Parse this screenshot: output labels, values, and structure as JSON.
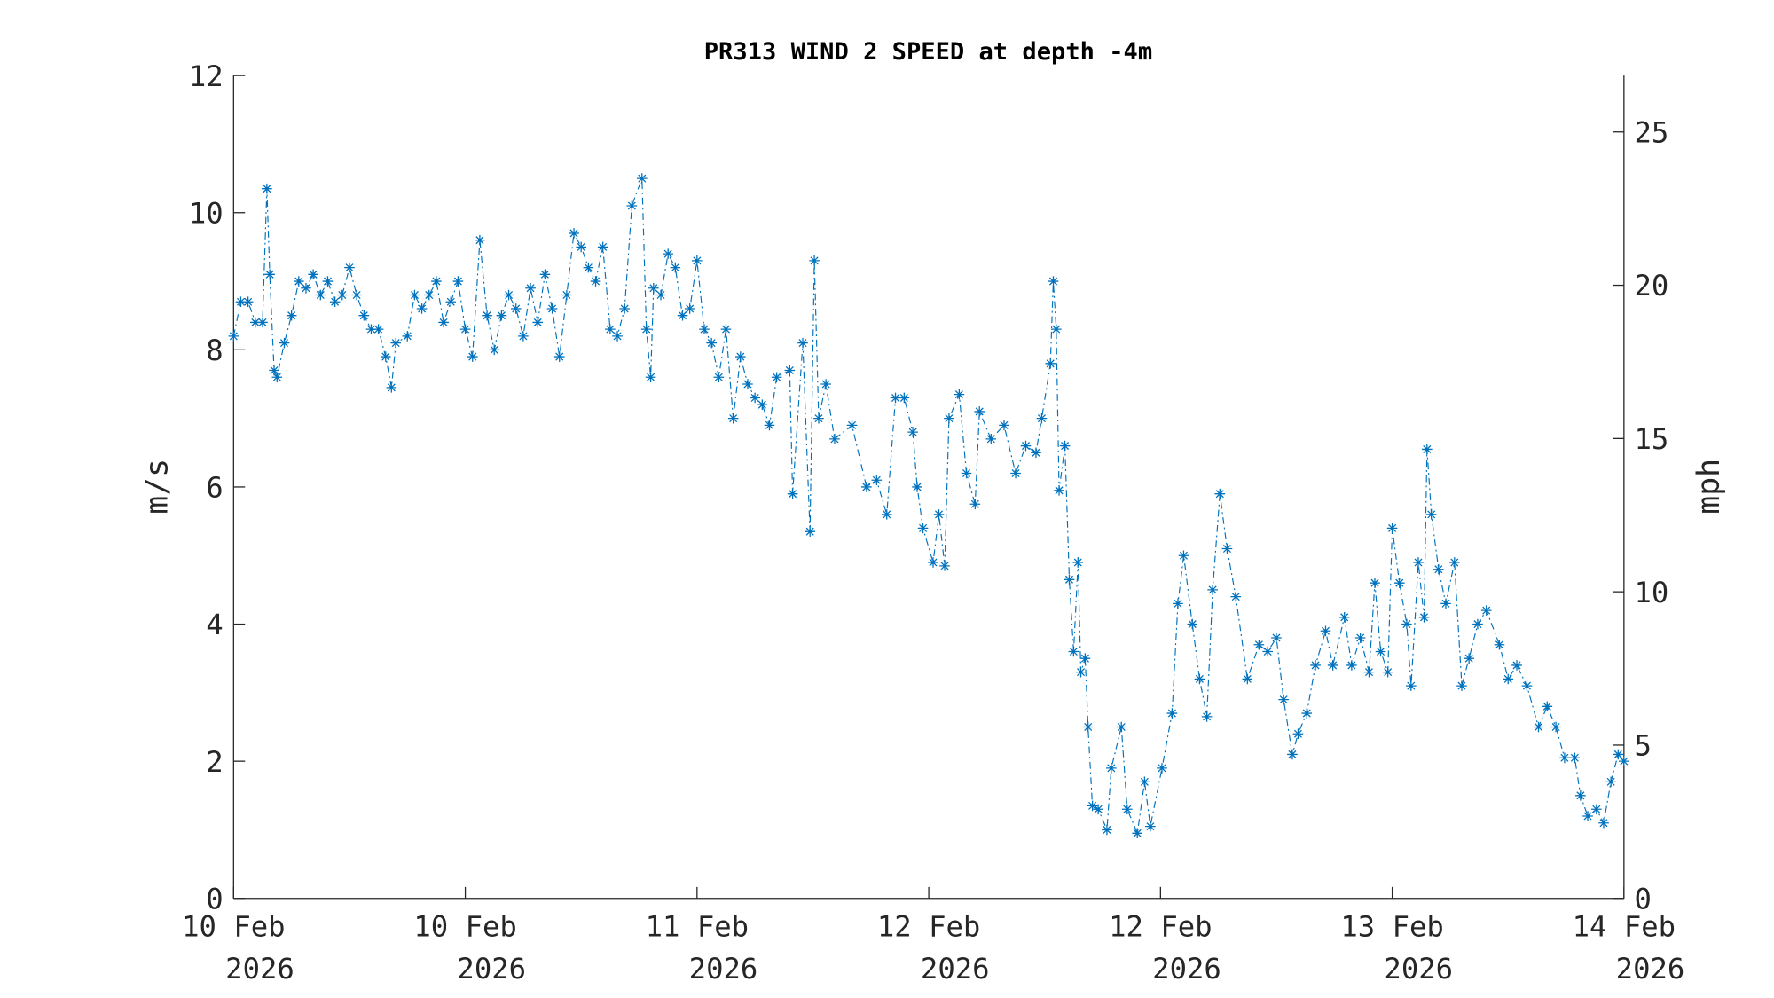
{
  "chart_data": {
    "type": "line",
    "title": "PR313 WIND 2 SPEED at depth -4m",
    "ylabel": "m/s",
    "ylabel_right": "mph",
    "xlabel": "",
    "xlim_hours": [
      0,
      96
    ],
    "ylim": [
      0,
      12
    ],
    "ylim_right": [
      0,
      26.84
    ],
    "yticks": [
      0,
      2,
      4,
      6,
      8,
      10,
      12
    ],
    "yticks_right": [
      0,
      5,
      10,
      15,
      20,
      25
    ],
    "xticks": [
      {
        "hour": 0,
        "line1": "10 Feb",
        "line2": "2026"
      },
      {
        "hour": 16,
        "line1": "10 Feb",
        "line2": "2026"
      },
      {
        "hour": 32,
        "line1": "11 Feb",
        "line2": "2026"
      },
      {
        "hour": 48,
        "line1": "12 Feb",
        "line2": "2026"
      },
      {
        "hour": 64,
        "line1": "12 Feb",
        "line2": "2026"
      },
      {
        "hour": 80,
        "line1": "13 Feb",
        "line2": "2026"
      },
      {
        "hour": 96,
        "line1": "14 Feb",
        "line2": "2026"
      }
    ],
    "grid": false,
    "series": [
      {
        "name": "wind speed",
        "color": "#0072BD",
        "marker": "asterisk",
        "linestyle": "dash-dot",
        "points": [
          [
            0,
            8.2
          ],
          [
            0.5,
            8.7
          ],
          [
            1,
            8.7
          ],
          [
            1.5,
            8.4
          ],
          [
            2,
            8.4
          ],
          [
            2.3,
            10.35
          ],
          [
            2.5,
            9.1
          ],
          [
            2.8,
            7.7
          ],
          [
            3,
            7.6
          ],
          [
            3.5,
            8.1
          ],
          [
            4,
            8.5
          ],
          [
            4.5,
            9.0
          ],
          [
            5,
            8.9
          ],
          [
            5.5,
            9.1
          ],
          [
            6,
            8.8
          ],
          [
            6.5,
            9.0
          ],
          [
            7,
            8.7
          ],
          [
            7.5,
            8.8
          ],
          [
            8,
            9.2
          ],
          [
            8.5,
            8.8
          ],
          [
            9,
            8.5
          ],
          [
            9.5,
            8.3
          ],
          [
            10,
            8.3
          ],
          [
            10.5,
            7.9
          ],
          [
            10.9,
            7.45
          ],
          [
            11.2,
            8.1
          ],
          [
            12,
            8.2
          ],
          [
            12.5,
            8.8
          ],
          [
            13,
            8.6
          ],
          [
            13.5,
            8.8
          ],
          [
            14,
            9.0
          ],
          [
            14.5,
            8.4
          ],
          [
            15,
            8.7
          ],
          [
            15.5,
            9.0
          ],
          [
            16,
            8.3
          ],
          [
            16.5,
            7.9
          ],
          [
            17,
            9.6
          ],
          [
            17.5,
            8.5
          ],
          [
            18,
            8.0
          ],
          [
            18.5,
            8.5
          ],
          [
            19,
            8.8
          ],
          [
            19.5,
            8.6
          ],
          [
            20,
            8.2
          ],
          [
            20.5,
            8.9
          ],
          [
            21,
            8.4
          ],
          [
            21.5,
            9.1
          ],
          [
            22,
            8.6
          ],
          [
            22.5,
            7.9
          ],
          [
            23,
            8.8
          ],
          [
            23.5,
            9.7
          ],
          [
            24,
            9.5
          ],
          [
            24.5,
            9.2
          ],
          [
            25,
            9.0
          ],
          [
            25.5,
            9.5
          ],
          [
            26,
            8.3
          ],
          [
            26.5,
            8.2
          ],
          [
            27,
            8.6
          ],
          [
            27.5,
            10.1
          ],
          [
            28.2,
            10.5
          ],
          [
            28.5,
            8.3
          ],
          [
            28.8,
            7.6
          ],
          [
            29,
            8.9
          ],
          [
            29.5,
            8.8
          ],
          [
            30,
            9.4
          ],
          [
            30.5,
            9.2
          ],
          [
            31,
            8.5
          ],
          [
            31.5,
            8.6
          ],
          [
            32,
            9.3
          ],
          [
            32.5,
            8.3
          ],
          [
            33,
            8.1
          ],
          [
            33.5,
            7.6
          ],
          [
            34,
            8.3
          ],
          [
            34.5,
            7.0
          ],
          [
            35,
            7.9
          ],
          [
            35.5,
            7.5
          ],
          [
            36,
            7.3
          ],
          [
            36.5,
            7.2
          ],
          [
            37,
            6.9
          ],
          [
            37.5,
            7.6
          ],
          [
            38.4,
            7.7
          ],
          [
            38.6,
            5.9
          ],
          [
            39.3,
            8.1
          ],
          [
            39.8,
            5.35
          ],
          [
            40.1,
            9.3
          ],
          [
            40.4,
            7.0
          ],
          [
            40.9,
            7.5
          ],
          [
            41.5,
            6.7
          ],
          [
            42.7,
            6.9
          ],
          [
            43.7,
            6.0
          ],
          [
            44.4,
            6.1
          ],
          [
            45.1,
            5.6
          ],
          [
            45.7,
            7.3
          ],
          [
            46.3,
            7.3
          ],
          [
            46.9,
            6.8
          ],
          [
            47.2,
            6.0
          ],
          [
            47.6,
            5.4
          ],
          [
            48.3,
            4.9
          ],
          [
            48.7,
            5.6
          ],
          [
            49.1,
            4.85
          ],
          [
            49.4,
            7.0
          ],
          [
            50.1,
            7.35
          ],
          [
            50.6,
            6.2
          ],
          [
            51.2,
            5.75
          ],
          [
            51.5,
            7.1
          ],
          [
            52.3,
            6.7
          ],
          [
            53.2,
            6.9
          ],
          [
            54.0,
            6.2
          ],
          [
            54.7,
            6.6
          ],
          [
            55.4,
            6.5
          ],
          [
            55.8,
            7.0
          ],
          [
            56.4,
            7.8
          ],
          [
            56.6,
            9.0
          ],
          [
            56.8,
            8.3
          ],
          [
            57.0,
            5.95
          ],
          [
            57.4,
            6.6
          ],
          [
            57.7,
            4.65
          ],
          [
            58.0,
            3.6
          ],
          [
            58.3,
            4.9
          ],
          [
            58.5,
            3.3
          ],
          [
            58.8,
            3.5
          ],
          [
            59.0,
            2.5
          ],
          [
            59.3,
            1.35
          ],
          [
            59.7,
            1.3
          ],
          [
            60.3,
            1.0
          ],
          [
            60.6,
            1.9
          ],
          [
            61.3,
            2.5
          ],
          [
            61.7,
            1.3
          ],
          [
            62.4,
            0.95
          ],
          [
            62.9,
            1.7
          ],
          [
            63.3,
            1.05
          ],
          [
            64.1,
            1.9
          ],
          [
            64.8,
            2.7
          ],
          [
            65.2,
            4.3
          ],
          [
            65.6,
            5.0
          ],
          [
            66.2,
            4.0
          ],
          [
            66.7,
            3.2
          ],
          [
            67.2,
            2.65
          ],
          [
            67.6,
            4.5
          ],
          [
            68.1,
            5.9
          ],
          [
            68.6,
            5.1
          ],
          [
            69.2,
            4.4
          ],
          [
            70.0,
            3.2
          ],
          [
            70.8,
            3.7
          ],
          [
            71.4,
            3.6
          ],
          [
            72.0,
            3.8
          ],
          [
            72.5,
            2.9
          ],
          [
            73.1,
            2.1
          ],
          [
            73.5,
            2.4
          ],
          [
            74.1,
            2.7
          ],
          [
            74.7,
            3.4
          ],
          [
            75.4,
            3.9
          ],
          [
            75.9,
            3.4
          ],
          [
            76.7,
            4.1
          ],
          [
            77.2,
            3.4
          ],
          [
            77.8,
            3.8
          ],
          [
            78.4,
            3.3
          ],
          [
            78.8,
            4.6
          ],
          [
            79.2,
            3.6
          ],
          [
            79.7,
            3.3
          ],
          [
            80.0,
            5.4
          ],
          [
            80.5,
            4.6
          ],
          [
            81.0,
            4.0
          ],
          [
            81.3,
            3.1
          ],
          [
            81.8,
            4.9
          ],
          [
            82.2,
            4.1
          ],
          [
            82.4,
            6.55
          ],
          [
            82.7,
            5.6
          ],
          [
            83.2,
            4.8
          ],
          [
            83.7,
            4.3
          ],
          [
            84.3,
            4.9
          ],
          [
            84.8,
            3.1
          ],
          [
            85.3,
            3.5
          ],
          [
            85.9,
            4.0
          ],
          [
            86.5,
            4.2
          ],
          [
            87.4,
            3.7
          ],
          [
            88.0,
            3.2
          ],
          [
            88.6,
            3.4
          ],
          [
            89.3,
            3.1
          ],
          [
            90.1,
            2.5
          ],
          [
            90.7,
            2.8
          ],
          [
            91.3,
            2.5
          ],
          [
            91.9,
            2.05
          ],
          [
            92.6,
            2.05
          ],
          [
            93.0,
            1.5
          ],
          [
            93.5,
            1.2
          ],
          [
            94.1,
            1.3
          ],
          [
            94.6,
            1.1
          ],
          [
            95.1,
            1.7
          ],
          [
            95.6,
            2.1
          ],
          [
            96.0,
            2.0
          ]
        ]
      }
    ]
  }
}
